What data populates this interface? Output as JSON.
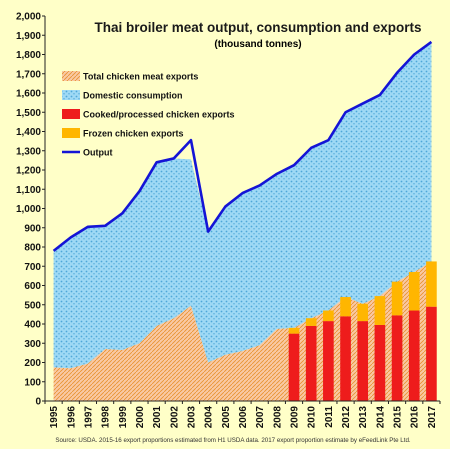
{
  "chart_data": {
    "type": "bar",
    "title": "Thai broiler meat output, consumption and exports",
    "subtitle": "(thousand tonnes)",
    "source": "Source: USDA. 2015-16 export proportions estimated from H1 USDA data. 2017 export proportion estimate by eFeedLink Pte Ltd.",
    "x": [
      "1995",
      "1996",
      "1997",
      "1998",
      "1999",
      "2000",
      "2001",
      "2002",
      "2003",
      "2004",
      "2005",
      "2006",
      "2007",
      "2008",
      "2009",
      "2010",
      "2011",
      "2012",
      "2013",
      "2014",
      "2015",
      "2016",
      "2017"
    ],
    "yticks": [
      "0",
      "100",
      "200",
      "300",
      "400",
      "500",
      "600",
      "700",
      "800",
      "900",
      "1,000",
      "1,100",
      "1,200",
      "1,300",
      "1,400",
      "1,500",
      "1,600",
      "1,700",
      "1,800",
      "1,900",
      "2,000"
    ],
    "ylim": [
      0,
      2000
    ],
    "legend": [
      {
        "key": "total_exports",
        "label": "Total chicken meat exports"
      },
      {
        "key": "domestic",
        "label": "Domestic consumption"
      },
      {
        "key": "cooked",
        "label": "Cooked/processed chicken exports"
      },
      {
        "key": "frozen",
        "label": "Frozen chicken exports"
      },
      {
        "key": "output",
        "label": "Output"
      }
    ],
    "series": {
      "total_exports": [
        175,
        170,
        195,
        270,
        265,
        300,
        390,
        430,
        495,
        200,
        240,
        260,
        290,
        375,
        380,
        430,
        470,
        540,
        505,
        545,
        620,
        670,
        725
      ],
      "domestic": [
        605,
        680,
        710,
        640,
        710,
        790,
        850,
        830,
        760,
        680,
        770,
        820,
        830,
        805,
        845,
        885,
        885,
        960,
        1040,
        1045,
        1085,
        1130,
        1140
      ],
      "output": [
        780,
        850,
        905,
        910,
        975,
        1090,
        1240,
        1260,
        1355,
        880,
        1010,
        1080,
        1120,
        1180,
        1225,
        1315,
        1355,
        1500,
        1545,
        1590,
        1705,
        1800,
        1865
      ],
      "cooked": [
        null,
        null,
        null,
        null,
        null,
        null,
        null,
        null,
        null,
        null,
        null,
        null,
        null,
        null,
        350,
        390,
        415,
        440,
        415,
        395,
        445,
        470,
        490
      ],
      "frozen": [
        null,
        null,
        null,
        null,
        null,
        null,
        null,
        null,
        null,
        null,
        null,
        null,
        null,
        null,
        30,
        40,
        55,
        100,
        90,
        150,
        175,
        200,
        235
      ]
    },
    "colors": {
      "background": "#FFFFC8",
      "total_exports_fill": "#F9C9A4",
      "total_exports_pattern": "#E8922E",
      "domestic_fill": "#9ED9F5",
      "domestic_pattern": "#4EA7D8",
      "cooked": "#EE1C1C",
      "frozen": "#FFB600",
      "output": "#1414D6",
      "title": "#1A1A1A"
    },
    "grid": false,
    "legend_position": "top-left"
  }
}
